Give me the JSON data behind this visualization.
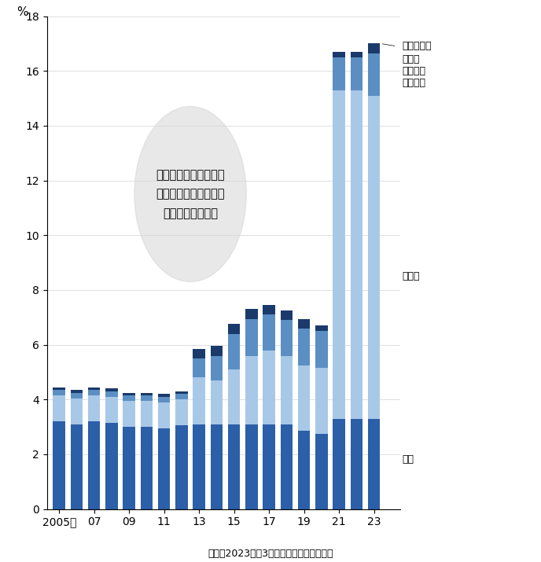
{
  "years": [
    2005,
    2006,
    2007,
    2008,
    2009,
    2010,
    2011,
    2012,
    2013,
    2014,
    2015,
    2016,
    2017,
    2018,
    2019,
    2020,
    2021,
    2022,
    2023
  ],
  "europe": [
    3.2,
    3.1,
    3.2,
    3.15,
    3.0,
    3.0,
    2.95,
    3.05,
    3.1,
    3.1,
    3.1,
    3.1,
    3.1,
    3.1,
    2.85,
    2.75,
    3.3,
    3.3,
    3.3
  ],
  "asia": [
    0.95,
    0.95,
    0.95,
    0.95,
    0.95,
    0.95,
    0.95,
    0.95,
    1.7,
    1.6,
    2.0,
    2.5,
    2.7,
    2.5,
    2.4,
    2.4,
    12.0,
    12.0,
    11.8
  ],
  "namerica": [
    0.2,
    0.2,
    0.2,
    0.2,
    0.2,
    0.2,
    0.2,
    0.2,
    0.7,
    0.9,
    1.3,
    1.35,
    1.3,
    1.3,
    1.35,
    1.35,
    1.2,
    1.2,
    1.55
  ],
  "oceania": [
    0.1,
    0.1,
    0.1,
    0.1,
    0.1,
    0.1,
    0.1,
    0.1,
    0.35,
    0.35,
    0.35,
    0.35,
    0.35,
    0.35,
    0.35,
    0.2,
    0.2,
    0.2,
    0.35
  ],
  "color_europe": "#2B5FA8",
  "color_asia": "#A8C8E8",
  "color_namerica": "#5B8FC4",
  "color_oceania": "#1A3A6B",
  "ylabel": "%",
  "ylim": [
    0,
    18
  ],
  "yticks": [
    0,
    2,
    4,
    6,
    8,
    10,
    12,
    14,
    16,
    18
  ],
  "xtick_labels": [
    "2005年",
    "07",
    "09",
    "11",
    "13",
    "15",
    "17",
    "19",
    "21",
    "23"
  ],
  "xtick_positions": [
    2005,
    2007,
    2009,
    2011,
    2013,
    2015,
    2017,
    2019,
    2021,
    2023
  ],
  "note": "（注）2023年は3月時点、出所は世界銀行",
  "circle_text": "カーボンプライシング\n（炭素価格）の対象と\nなる排出量の割合",
  "legend_europe": "欧州",
  "legend_asia": "アジア",
  "legend_namerica": "米国・\nカナダ・\nメキシコ",
  "legend_oceania": "オセアニア"
}
